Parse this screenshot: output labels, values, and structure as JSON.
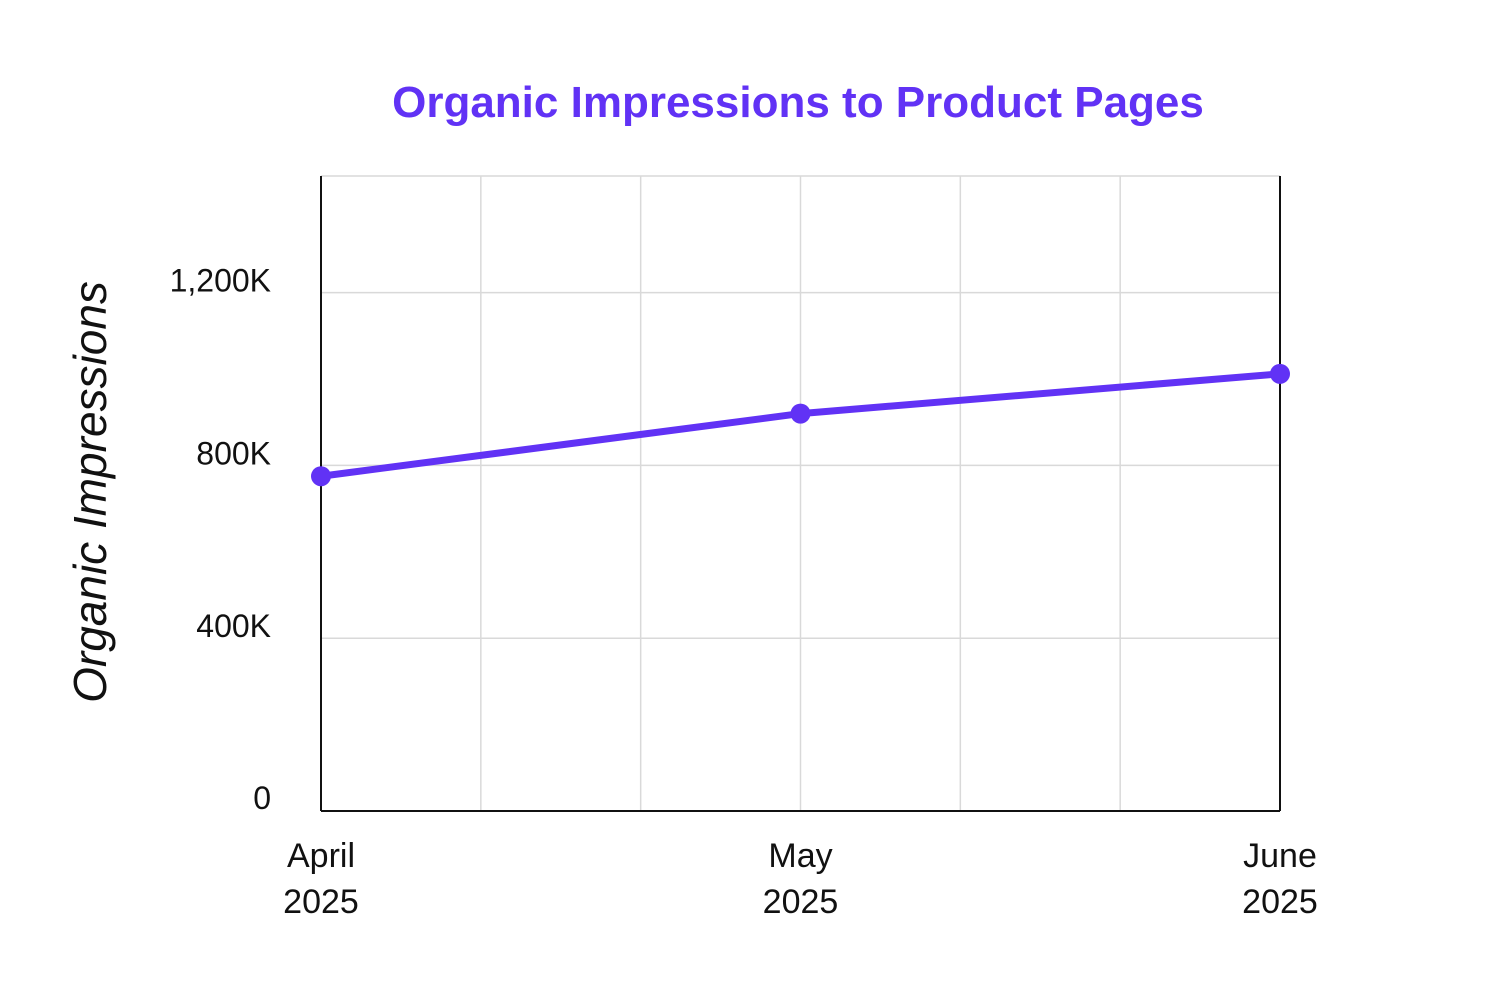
{
  "colors": {
    "accent": "#6132f5",
    "grid": "#d9d9d9",
    "axis": "#111111"
  },
  "chart_data": {
    "type": "line",
    "title": "Organic Impressions to Product Pages",
    "xlabel": "",
    "ylabel": "Organic Impressions",
    "categories": [
      [
        "April",
        "2025"
      ],
      [
        "May",
        "2025"
      ],
      [
        "June",
        "2025"
      ]
    ],
    "series": [
      {
        "values": [
          775000,
          920000,
          1012000
        ]
      }
    ],
    "ylim": [
      0,
      1470000
    ],
    "yticks": [
      0,
      400000,
      800000,
      1200000
    ],
    "ytick_labels": [
      "0",
      "400K",
      "800K",
      "1,200K"
    ],
    "x_gridlines_per_interval": 3,
    "grid": true,
    "legend": "none"
  }
}
